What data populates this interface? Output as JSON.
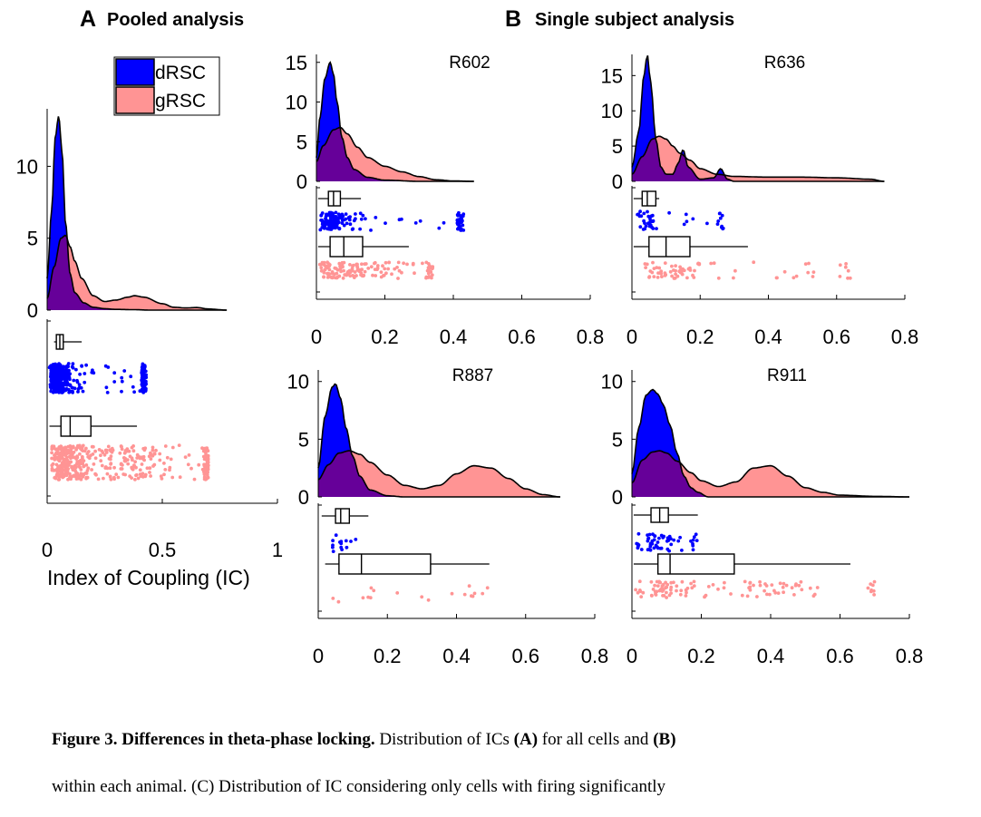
{
  "panel_a": {
    "letter": "A",
    "title": "Pooled analysis"
  },
  "panel_b": {
    "letter": "B",
    "title": "Single subject analysis"
  },
  "caption": {
    "bold": "Figure 3. Differences in theta-phase locking.",
    "t1": " Distribution of ICs ",
    "a": "(A)",
    "t2": " for all cells and ",
    "b": "(B)",
    "line2": "within each animal. (C) Distribution of IC considering only cells with firing significantly"
  },
  "chart_data": [
    {
      "type": "area",
      "title": "Pooled analysis",
      "xlabel": "Index of Coupling (IC)",
      "xlim": [
        0,
        1
      ],
      "xticks": [
        0,
        0.5,
        1
      ],
      "ylim": [
        0,
        14
      ],
      "yticks": [
        0,
        5,
        10
      ],
      "legend": {
        "placement": "top-right",
        "entries": [
          "dRSC",
          "gRSC"
        ]
      },
      "series": [
        {
          "name": "dRSC",
          "color": "#0000ff",
          "x": [
            0,
            0.02,
            0.035,
            0.05,
            0.065,
            0.08,
            0.1,
            0.12,
            0.16,
            0.2,
            0.25,
            0.3,
            0.38,
            0.45
          ],
          "density": [
            2.2,
            7,
            12,
            13.5,
            11,
            6,
            2.5,
            1.2,
            0.5,
            0.2,
            0.1,
            0.05,
            0.03,
            0
          ]
        },
        {
          "name": "gRSC",
          "color": "#ff8c8c",
          "x": [
            0,
            0.03,
            0.06,
            0.08,
            0.1,
            0.12,
            0.15,
            0.2,
            0.25,
            0.3,
            0.35,
            0.38,
            0.42,
            0.5,
            0.55,
            0.6,
            0.65,
            0.7,
            0.78
          ],
          "density": [
            0.8,
            3,
            5,
            5.2,
            4.4,
            3.4,
            2.2,
            1,
            0.6,
            0.7,
            0.9,
            1,
            0.9,
            0.45,
            0.2,
            0.15,
            0.18,
            0.08,
            0
          ]
        }
      ],
      "boxplots": [
        {
          "name": "dRSC",
          "whisker_low": 0.03,
          "q1": 0.04,
          "median": 0.055,
          "q3": 0.07,
          "whisker_high": 0.15
        },
        {
          "name": "gRSC",
          "whisker_low": 0.01,
          "q1": 0.06,
          "median": 0.1,
          "q3": 0.19,
          "whisker_high": 0.39
        }
      ],
      "points": {
        "dRSC_range": [
          0.01,
          0.43
        ],
        "gRSC_range": [
          0.02,
          0.7
        ]
      }
    },
    {
      "type": "area",
      "subject": "R602",
      "xlim": [
        0,
        0.8
      ],
      "xticks": [
        0,
        0.2,
        0.4,
        0.6,
        0.8
      ],
      "ylim": [
        0,
        16
      ],
      "yticks": [
        0,
        5,
        10,
        15
      ],
      "series": [
        {
          "name": "dRSC",
          "x": [
            0,
            0.01,
            0.025,
            0.04,
            0.05,
            0.06,
            0.075,
            0.09,
            0.11,
            0.15,
            0.2,
            0.3
          ],
          "density": [
            3,
            8,
            13,
            15,
            13.5,
            10,
            5.5,
            3,
            1.5,
            0.5,
            0.15,
            0
          ]
        },
        {
          "name": "gRSC",
          "x": [
            0,
            0.02,
            0.05,
            0.07,
            0.09,
            0.12,
            0.15,
            0.2,
            0.25,
            0.3,
            0.35,
            0.4,
            0.46
          ],
          "density": [
            2.5,
            4.5,
            6.5,
            6.8,
            6,
            4.3,
            3,
            1.9,
            1.2,
            0.6,
            0.2,
            0.05,
            0
          ]
        }
      ],
      "boxplots": [
        {
          "name": "dRSC",
          "whisker_low": 0.005,
          "q1": 0.035,
          "median": 0.05,
          "q3": 0.07,
          "whisker_high": 0.13
        },
        {
          "name": "gRSC",
          "whisker_low": 0.005,
          "q1": 0.04,
          "median": 0.08,
          "q3": 0.135,
          "whisker_high": 0.27
        }
      ],
      "points": {
        "dRSC_range": [
          0.01,
          0.43
        ],
        "gRSC_range": [
          0.01,
          0.34
        ]
      }
    },
    {
      "type": "area",
      "subject": "R636",
      "xlim": [
        0,
        0.8
      ],
      "xticks": [
        0,
        0.2,
        0.4,
        0.6,
        0.8
      ],
      "ylim": [
        0,
        18
      ],
      "yticks": [
        0,
        5,
        10,
        15
      ],
      "series": [
        {
          "name": "dRSC",
          "x": [
            0,
            0.02,
            0.035,
            0.045,
            0.055,
            0.07,
            0.085,
            0.1,
            0.12,
            0.135,
            0.15,
            0.165,
            0.2,
            0.24,
            0.26,
            0.28,
            0.3
          ],
          "density": [
            2,
            7,
            15,
            18,
            14,
            6,
            2,
            1,
            1,
            2.5,
            4.5,
            2,
            0.3,
            0.5,
            1.8,
            0.3,
            0
          ]
        },
        {
          "name": "gRSC",
          "x": [
            0,
            0.03,
            0.06,
            0.08,
            0.1,
            0.12,
            0.14,
            0.17,
            0.2,
            0.25,
            0.3,
            0.4,
            0.5,
            0.6,
            0.7,
            0.74
          ],
          "density": [
            1,
            3.5,
            6,
            6.4,
            6,
            5,
            4,
            3,
            1.8,
            1,
            0.7,
            0.6,
            0.6,
            0.5,
            0.3,
            0
          ]
        }
      ],
      "boxplots": [
        {
          "name": "dRSC",
          "whisker_low": 0.005,
          "q1": 0.03,
          "median": 0.045,
          "q3": 0.07,
          "whisker_high": 0.08
        },
        {
          "name": "gRSC",
          "whisker_low": 0.005,
          "q1": 0.05,
          "median": 0.1,
          "q3": 0.17,
          "whisker_high": 0.34
        }
      ],
      "points": {
        "dRSC_range": [
          0.01,
          0.27
        ],
        "gRSC_range": [
          0.01,
          0.64
        ]
      }
    },
    {
      "type": "area",
      "subject": "R887",
      "xlim": [
        0,
        0.8
      ],
      "xticks": [
        0,
        0.2,
        0.4,
        0.6,
        0.8
      ],
      "ylim": [
        0,
        11
      ],
      "yticks": [
        0,
        5,
        10
      ],
      "series": [
        {
          "name": "dRSC",
          "x": [
            0,
            0.02,
            0.04,
            0.05,
            0.065,
            0.08,
            0.1,
            0.12,
            0.15,
            0.2,
            0.25
          ],
          "density": [
            2.5,
            7,
            9.5,
            9.8,
            8.5,
            6,
            3.5,
            1.8,
            0.6,
            0.1,
            0
          ]
        },
        {
          "name": "gRSC",
          "x": [
            0,
            0.03,
            0.06,
            0.09,
            0.12,
            0.15,
            0.2,
            0.25,
            0.3,
            0.35,
            0.4,
            0.45,
            0.5,
            0.55,
            0.6,
            0.65,
            0.7
          ],
          "density": [
            1.5,
            2.8,
            3.8,
            4,
            3.7,
            3,
            1.9,
            1,
            0.7,
            1,
            2,
            2.7,
            2.5,
            1.6,
            0.7,
            0.2,
            0
          ]
        }
      ],
      "boxplots": [
        {
          "name": "dRSC",
          "whisker_low": 0.01,
          "q1": 0.05,
          "median": 0.065,
          "q3": 0.09,
          "whisker_high": 0.145
        },
        {
          "name": "gRSC",
          "whisker_low": 0.02,
          "q1": 0.06,
          "median": 0.125,
          "q3": 0.325,
          "whisker_high": 0.495
        }
      ],
      "points": {
        "dRSC_range": [
          0.04,
          0.11
        ],
        "gRSC_range": [
          0.04,
          0.5
        ]
      }
    },
    {
      "type": "area",
      "subject": "R911",
      "xlim": [
        0,
        0.8
      ],
      "xticks": [
        0,
        0.2,
        0.4,
        0.6,
        0.8
      ],
      "ylim": [
        0,
        11
      ],
      "yticks": [
        0,
        5,
        10
      ],
      "series": [
        {
          "name": "dRSC",
          "x": [
            0,
            0.02,
            0.04,
            0.06,
            0.075,
            0.09,
            0.11,
            0.13,
            0.15,
            0.17,
            0.19,
            0.22
          ],
          "density": [
            2,
            6,
            8.8,
            9.3,
            8.9,
            8,
            6.2,
            3.8,
            1.8,
            0.8,
            0.4,
            0
          ]
        },
        {
          "name": "gRSC",
          "x": [
            0,
            0.03,
            0.06,
            0.08,
            0.1,
            0.13,
            0.17,
            0.2,
            0.25,
            0.3,
            0.35,
            0.4,
            0.45,
            0.5,
            0.55,
            0.6,
            0.7,
            0.8
          ],
          "density": [
            1.2,
            3.2,
            3.9,
            4,
            3.8,
            3.1,
            2.1,
            1.4,
            0.9,
            1.3,
            2.5,
            2.7,
            1.8,
            0.8,
            0.4,
            0.15,
            0.05,
            0
          ]
        }
      ],
      "boxplots": [
        {
          "name": "dRSC",
          "whisker_low": 0.005,
          "q1": 0.055,
          "median": 0.08,
          "q3": 0.105,
          "whisker_high": 0.19
        },
        {
          "name": "gRSC",
          "whisker_low": 0.005,
          "q1": 0.075,
          "median": 0.11,
          "q3": 0.295,
          "whisker_high": 0.63
        }
      ],
      "points": {
        "dRSC_range": [
          0.01,
          0.19
        ],
        "gRSC_range": [
          0.01,
          0.7
        ]
      }
    }
  ]
}
